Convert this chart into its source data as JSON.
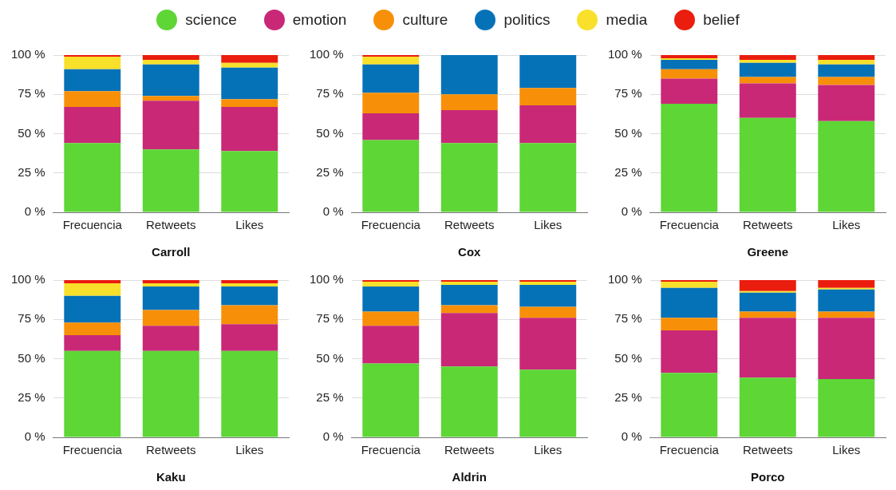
{
  "chart_data": [
    {
      "type": "bar",
      "stacked": true,
      "xlabel": "Carroll",
      "legend": "top",
      "grid": "y",
      "categories": [
        "Frecuencia",
        "Retweets",
        "Likes"
      ],
      "ylim": [
        0,
        100
      ],
      "yticks": [
        {
          "value": 0,
          "label": "0 %"
        },
        {
          "value": 25,
          "label": "25 %"
        },
        {
          "value": 50,
          "label": "50 %"
        },
        {
          "value": 75,
          "label": "75 %"
        },
        {
          "value": 100,
          "label": "100 %"
        }
      ],
      "series": [
        {
          "name": "science",
          "color": "#5dd636",
          "values": [
            44,
            40,
            39
          ]
        },
        {
          "name": "emotion",
          "color": "#c92877",
          "values": [
            23,
            31,
            28
          ]
        },
        {
          "name": "culture",
          "color": "#f79008",
          "values": [
            10,
            3,
            5
          ]
        },
        {
          "name": "politics",
          "color": "#0572b8",
          "values": [
            14,
            20,
            20
          ]
        },
        {
          "name": "media",
          "color": "#f9e02b",
          "values": [
            8,
            3,
            3
          ]
        },
        {
          "name": "belief",
          "color": "#ea1d0e",
          "values": [
            1,
            3,
            5
          ]
        }
      ]
    },
    {
      "type": "bar",
      "stacked": true,
      "xlabel": "Cox",
      "grid": "y",
      "categories": [
        "Frecuencia",
        "Retweets",
        "Likes"
      ],
      "ylim": [
        0,
        100
      ],
      "yticks": [
        {
          "value": 0,
          "label": "0 %"
        },
        {
          "value": 25,
          "label": "25 %"
        },
        {
          "value": 50,
          "label": "50 %"
        },
        {
          "value": 75,
          "label": "75 %"
        },
        {
          "value": 100,
          "label": "100 %"
        }
      ],
      "series": [
        {
          "color": "#5dd636",
          "values": [
            46,
            44,
            44
          ]
        },
        {
          "color": "#c92877",
          "values": [
            17,
            21,
            24
          ]
        },
        {
          "color": "#f79008",
          "values": [
            13,
            10,
            11
          ]
        },
        {
          "color": "#0572b8",
          "values": [
            18,
            25,
            21
          ]
        },
        {
          "color": "#f9e02b",
          "values": [
            5,
            0,
            0
          ]
        },
        {
          "color": "#ea1d0e",
          "values": [
            1,
            0,
            0
          ]
        }
      ]
    },
    {
      "type": "bar",
      "stacked": true,
      "xlabel": "Greene",
      "grid": "y",
      "categories": [
        "Frecuencia",
        "Retweets",
        "Likes"
      ],
      "ylim": [
        0,
        100
      ],
      "yticks": [
        {
          "value": 0,
          "label": "0 %"
        },
        {
          "value": 25,
          "label": "25 %"
        },
        {
          "value": 50,
          "label": "50 %"
        },
        {
          "value": 75,
          "label": "75 %"
        },
        {
          "value": 100,
          "label": "100 %"
        }
      ],
      "series": [
        {
          "color": "#5dd636",
          "values": [
            69,
            60,
            58
          ]
        },
        {
          "color": "#c92877",
          "values": [
            16,
            22,
            23
          ]
        },
        {
          "color": "#f79008",
          "values": [
            6,
            4,
            5
          ]
        },
        {
          "color": "#0572b8",
          "values": [
            6,
            9,
            8
          ]
        },
        {
          "color": "#f9e02b",
          "values": [
            1,
            2,
            3
          ]
        },
        {
          "color": "#ea1d0e",
          "values": [
            2,
            3,
            3
          ]
        }
      ]
    },
    {
      "type": "bar",
      "stacked": true,
      "xlabel": "Kaku",
      "grid": "y",
      "categories": [
        "Frecuencia",
        "Retweets",
        "Likes"
      ],
      "ylim": [
        0,
        100
      ],
      "yticks": [
        {
          "value": 0,
          "label": "0 %"
        },
        {
          "value": 25,
          "label": "25 %"
        },
        {
          "value": 50,
          "label": "50 %"
        },
        {
          "value": 75,
          "label": "75 %"
        },
        {
          "value": 100,
          "label": "100 %"
        }
      ],
      "series": [
        {
          "color": "#5dd636",
          "values": [
            55,
            55,
            55
          ]
        },
        {
          "color": "#c92877",
          "values": [
            10,
            16,
            17
          ]
        },
        {
          "color": "#f79008",
          "values": [
            8,
            10,
            12
          ]
        },
        {
          "color": "#0572b8",
          "values": [
            17,
            15,
            12
          ]
        },
        {
          "color": "#f9e02b",
          "values": [
            8,
            2,
            2
          ]
        },
        {
          "color": "#ea1d0e",
          "values": [
            2,
            2,
            2
          ]
        }
      ]
    },
    {
      "type": "bar",
      "stacked": true,
      "xlabel": "Aldrin",
      "grid": "y",
      "categories": [
        "Frecuencia",
        "Retweets",
        "Likes"
      ],
      "ylim": [
        0,
        100
      ],
      "yticks": [
        {
          "value": 0,
          "label": "0 %"
        },
        {
          "value": 25,
          "label": "25 %"
        },
        {
          "value": 50,
          "label": "50 %"
        },
        {
          "value": 75,
          "label": "75 %"
        },
        {
          "value": 100,
          "label": "100 %"
        }
      ],
      "series": [
        {
          "color": "#5dd636",
          "values": [
            47,
            45,
            43
          ]
        },
        {
          "color": "#c92877",
          "values": [
            24,
            34,
            33
          ]
        },
        {
          "color": "#f79008",
          "values": [
            9,
            5,
            7
          ]
        },
        {
          "color": "#0572b8",
          "values": [
            16,
            13,
            14
          ]
        },
        {
          "color": "#f9e02b",
          "values": [
            3,
            2,
            2
          ]
        },
        {
          "color": "#ea1d0e",
          "values": [
            1,
            1,
            1
          ]
        }
      ]
    },
    {
      "type": "bar",
      "stacked": true,
      "xlabel": "Porco",
      "grid": "y",
      "categories": [
        "Frecuencia",
        "Retweets",
        "Likes"
      ],
      "ylim": [
        0,
        100
      ],
      "yticks": [
        {
          "value": 0,
          "label": "0 %"
        },
        {
          "value": 25,
          "label": "25 %"
        },
        {
          "value": 50,
          "label": "50 %"
        },
        {
          "value": 75,
          "label": "75 %"
        },
        {
          "value": 100,
          "label": "100 %"
        }
      ],
      "series": [
        {
          "color": "#5dd636",
          "values": [
            41,
            38,
            37
          ]
        },
        {
          "color": "#c92877",
          "values": [
            27,
            38,
            39
          ]
        },
        {
          "color": "#f79008",
          "values": [
            8,
            4,
            4
          ]
        },
        {
          "color": "#0572b8",
          "values": [
            19,
            12,
            14
          ]
        },
        {
          "color": "#f9e02b",
          "values": [
            4,
            1,
            1
          ]
        },
        {
          "color": "#ea1d0e",
          "values": [
            1,
            7,
            5
          ]
        }
      ]
    }
  ]
}
